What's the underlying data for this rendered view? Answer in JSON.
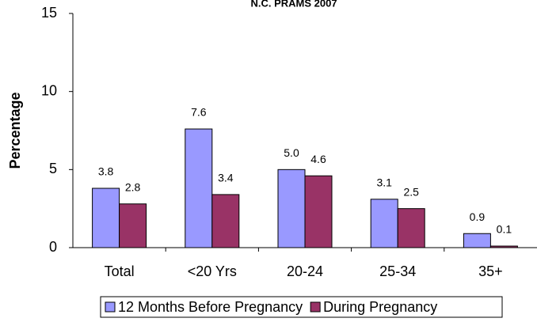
{
  "chart_data": {
    "type": "bar",
    "title": "N.C. PRAMS 2007",
    "y_label": "Percentage",
    "categories": [
      "Total",
      "<20 Yrs",
      "20-24",
      "25-34",
      "35+"
    ],
    "series": [
      {
        "name": "12 Months Before Pregnancy",
        "color": "#9999ff",
        "values": [
          3.8,
          7.6,
          5.0,
          3.1,
          0.9
        ],
        "value_labels": [
          "3.8",
          "7.6",
          "5.0",
          "3.1",
          "0.9"
        ]
      },
      {
        "name": "During Pregnancy",
        "color": "#993366",
        "values": [
          2.8,
          3.4,
          4.6,
          2.5,
          0.1
        ],
        "value_labels": [
          "2.8",
          "3.4",
          "4.6",
          "2.5",
          "0.1"
        ]
      }
    ],
    "ylim": [
      0,
      15
    ],
    "yticks": [
      0,
      5,
      10,
      15
    ],
    "grid": false,
    "legend": "bottom"
  }
}
